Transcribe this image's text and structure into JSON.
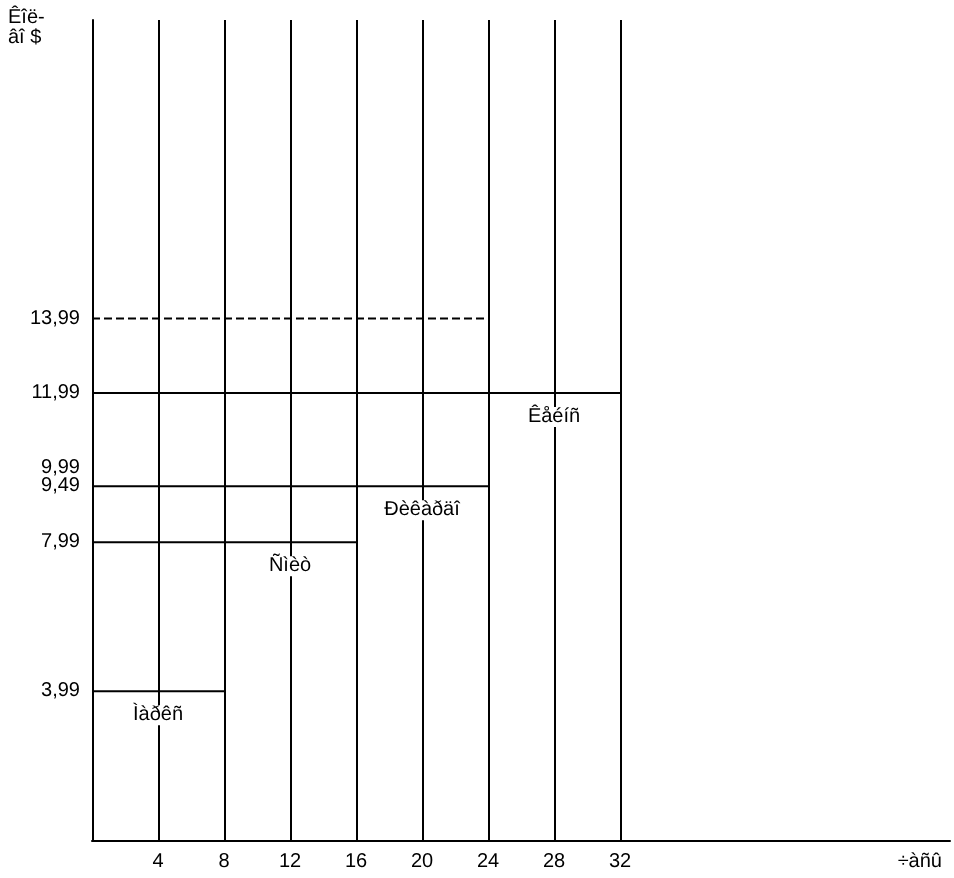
{
  "chart_data": {
    "type": "line",
    "xlabel": "÷àñû",
    "ylabel": "Êîë-âî $",
    "xlim": [
      0,
      52
    ],
    "ylim": [
      0,
      22
    ],
    "xticks": [
      4,
      8,
      12,
      16,
      20,
      24,
      28,
      32
    ],
    "yticks": [
      {
        "value": 3.99,
        "label": "3,99"
      },
      {
        "value": 7.99,
        "label": "7,99"
      },
      {
        "value": 9.49,
        "label": "9,49"
      },
      {
        "value": 9.99,
        "label": "9,99"
      },
      {
        "value": 11.99,
        "label": "11,99"
      },
      {
        "value": 13.99,
        "label": "13,99"
      }
    ],
    "series": [
      {
        "name": "Ìàðêñ",
        "color": "#000000",
        "x": [
          0,
          8
        ],
        "values": [
          3.99,
          3.99
        ]
      },
      {
        "name": "Ñìèò",
        "color": "#000000",
        "x": [
          0,
          16
        ],
        "values": [
          7.99,
          7.99
        ]
      },
      {
        "name": "Ðèêàðäî",
        "color": "#000000",
        "x": [
          0,
          24
        ],
        "values": [
          9.49,
          9.49
        ]
      },
      {
        "name": "Êåéíñ",
        "color": "#000000",
        "x": [
          0,
          32
        ],
        "values": [
          11.99,
          11.99
        ]
      },
      {
        "color": "#000000",
        "x": [
          0,
          24
        ],
        "values": [
          13.99,
          13.99
        ],
        "line_style": "dashed"
      }
    ],
    "grid": "x",
    "marker": "none",
    "legend": false
  }
}
